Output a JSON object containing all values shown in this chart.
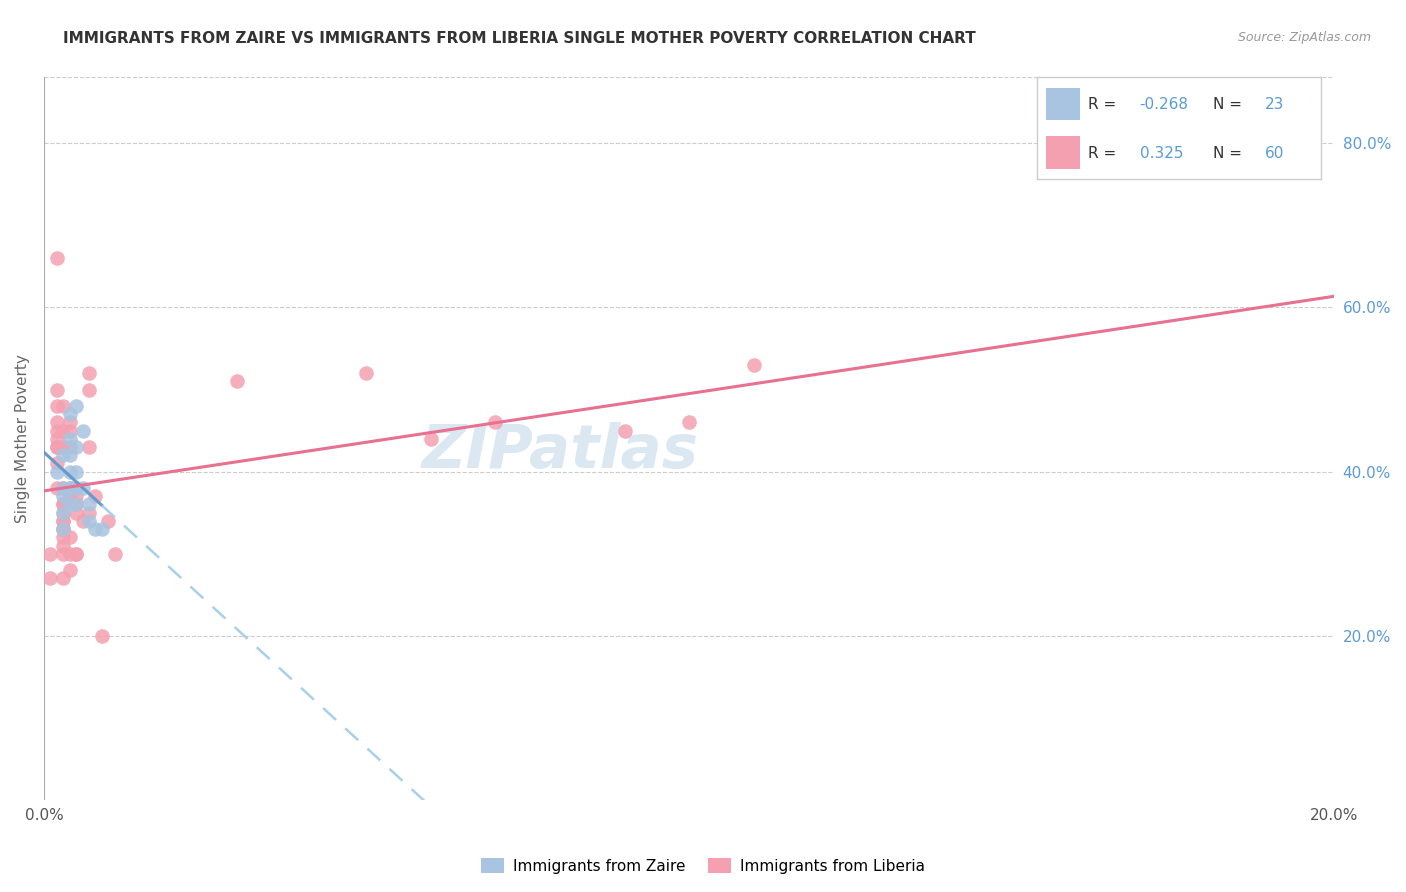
{
  "title": "IMMIGRANTS FROM ZAIRE VS IMMIGRANTS FROM LIBERIA SINGLE MOTHER POVERTY CORRELATION CHART",
  "source": "Source: ZipAtlas.com",
  "ylabel": "Single Mother Poverty",
  "legend_zaire": "Immigrants from Zaire",
  "legend_liberia": "Immigrants from Liberia",
  "R_zaire": -0.268,
  "N_zaire": 23,
  "R_liberia": 0.325,
  "N_liberia": 60,
  "color_zaire": "#a8c4e0",
  "color_liberia": "#f4a0b0",
  "line_zaire_solid": "#6699cc",
  "line_liberia_solid": "#e87090",
  "line_zaire_dashed": "#a8d0e8",
  "watermark": "ZIPatlas",
  "xlim": [
    0.0,
    0.2
  ],
  "ylim": [
    0.0,
    0.88
  ],
  "zaire_points": [
    [
      0.002,
      0.4
    ],
    [
      0.003,
      0.38
    ],
    [
      0.003,
      0.42
    ],
    [
      0.003,
      0.37
    ],
    [
      0.003,
      0.35
    ],
    [
      0.003,
      0.33
    ],
    [
      0.004,
      0.44
    ],
    [
      0.004,
      0.42
    ],
    [
      0.004,
      0.4
    ],
    [
      0.004,
      0.38
    ],
    [
      0.004,
      0.36
    ],
    [
      0.004,
      0.47
    ],
    [
      0.005,
      0.43
    ],
    [
      0.005,
      0.4
    ],
    [
      0.005,
      0.38
    ],
    [
      0.005,
      0.36
    ],
    [
      0.005,
      0.48
    ],
    [
      0.006,
      0.45
    ],
    [
      0.006,
      0.38
    ],
    [
      0.007,
      0.36
    ],
    [
      0.007,
      0.34
    ],
    [
      0.008,
      0.33
    ],
    [
      0.009,
      0.33
    ]
  ],
  "liberia_points": [
    [
      0.001,
      0.3
    ],
    [
      0.001,
      0.27
    ],
    [
      0.002,
      0.5
    ],
    [
      0.002,
      0.48
    ],
    [
      0.002,
      0.45
    ],
    [
      0.002,
      0.43
    ],
    [
      0.002,
      0.66
    ],
    [
      0.002,
      0.46
    ],
    [
      0.002,
      0.44
    ],
    [
      0.002,
      0.43
    ],
    [
      0.002,
      0.41
    ],
    [
      0.002,
      0.38
    ],
    [
      0.003,
      0.36
    ],
    [
      0.003,
      0.35
    ],
    [
      0.003,
      0.34
    ],
    [
      0.003,
      0.33
    ],
    [
      0.003,
      0.32
    ],
    [
      0.003,
      0.31
    ],
    [
      0.003,
      0.3
    ],
    [
      0.003,
      0.27
    ],
    [
      0.003,
      0.48
    ],
    [
      0.003,
      0.45
    ],
    [
      0.003,
      0.43
    ],
    [
      0.003,
      0.38
    ],
    [
      0.003,
      0.36
    ],
    [
      0.003,
      0.34
    ],
    [
      0.003,
      0.33
    ],
    [
      0.004,
      0.46
    ],
    [
      0.004,
      0.43
    ],
    [
      0.004,
      0.38
    ],
    [
      0.004,
      0.37
    ],
    [
      0.004,
      0.32
    ],
    [
      0.004,
      0.45
    ],
    [
      0.004,
      0.37
    ],
    [
      0.004,
      0.3
    ],
    [
      0.004,
      0.28
    ],
    [
      0.004,
      0.38
    ],
    [
      0.004,
      0.37
    ],
    [
      0.005,
      0.35
    ],
    [
      0.005,
      0.37
    ],
    [
      0.005,
      0.3
    ],
    [
      0.005,
      0.3
    ],
    [
      0.005,
      0.38
    ],
    [
      0.005,
      0.36
    ],
    [
      0.006,
      0.34
    ],
    [
      0.007,
      0.52
    ],
    [
      0.007,
      0.43
    ],
    [
      0.007,
      0.35
    ],
    [
      0.007,
      0.5
    ],
    [
      0.008,
      0.37
    ],
    [
      0.009,
      0.2
    ],
    [
      0.01,
      0.34
    ],
    [
      0.011,
      0.3
    ],
    [
      0.03,
      0.51
    ],
    [
      0.05,
      0.52
    ],
    [
      0.06,
      0.44
    ],
    [
      0.07,
      0.46
    ],
    [
      0.09,
      0.45
    ],
    [
      0.1,
      0.46
    ],
    [
      0.11,
      0.53
    ]
  ]
}
